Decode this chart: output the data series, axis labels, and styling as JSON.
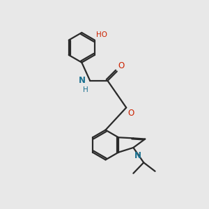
{
  "bg_color": "#e8e8e8",
  "bond_color": "#2a2a2a",
  "N_color": "#1a7090",
  "O_color": "#cc2200",
  "lw": 1.6,
  "dbo": 0.055,
  "r_hex": 0.72,
  "xlim": [
    0,
    8
  ],
  "ylim": [
    0,
    10
  ]
}
